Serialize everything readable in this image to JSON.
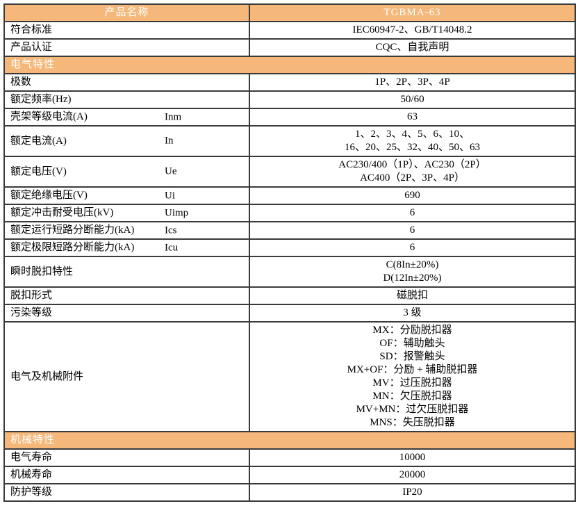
{
  "colors": {
    "accent_orange": "#f5b87a",
    "border": "#3a3a3a",
    "header_text": "#ffffff",
    "body_text": "#000000"
  },
  "table": {
    "rows": [
      {
        "type": "header",
        "label": "产品名称",
        "values": [
          "TGBMA-63"
        ]
      },
      {
        "type": "data",
        "label": "符合标准",
        "values": [
          "IEC60947-2、GB/T14048.2"
        ]
      },
      {
        "type": "data",
        "label": "产品认证",
        "values": [
          "CQC、自我声明"
        ]
      },
      {
        "type": "section",
        "label": "电气特性"
      },
      {
        "type": "data",
        "label": "极数",
        "values": [
          "1P、2P、3P、4P"
        ]
      },
      {
        "type": "data",
        "label": "额定频率(Hz)",
        "values": [
          "50/60"
        ]
      },
      {
        "type": "data",
        "label": "壳架等级电流(A)",
        "symbol": "Inm",
        "values": [
          "63"
        ]
      },
      {
        "type": "data",
        "label": "额定电流(A)",
        "symbol": "In",
        "values": [
          "1、2、3、4、5、6、10、",
          "16、20、25、32、40、50、63"
        ]
      },
      {
        "type": "data",
        "label": "额定电压(V)",
        "symbol": "Ue",
        "values": [
          "AC230/400（1P）、AC230（2P）",
          "AC400（2P、3P、4P）"
        ]
      },
      {
        "type": "data",
        "label": "额定绝缘电压(V)",
        "symbol": "Ui",
        "values": [
          "690"
        ]
      },
      {
        "type": "data",
        "label": "额定冲击耐受电压(kV)",
        "symbol": "Uimp",
        "values": [
          "6"
        ]
      },
      {
        "type": "data",
        "label": "额定运行短路分断能力(kA)",
        "symbol": "Ics",
        "values": [
          "6"
        ]
      },
      {
        "type": "data",
        "label": "额定极限短路分断能力(kA)",
        "symbol": "Icu",
        "values": [
          "6"
        ]
      },
      {
        "type": "data",
        "label": "瞬时脱扣特性",
        "values": [
          "C(8In±20%)",
          "D(12In±20%)"
        ]
      },
      {
        "type": "data",
        "label": "脱扣形式",
        "values": [
          "磁脱扣"
        ]
      },
      {
        "type": "data",
        "label": "污染等级",
        "values": [
          "3 级"
        ]
      },
      {
        "type": "data",
        "label": "电气及机械附件",
        "values": [
          "MX：分励脱扣器",
          "OF：辅助触头",
          "SD：报警触头",
          "MX+OF：分励 + 辅助脱扣器",
          "MV：过压脱扣器",
          "MN：欠压脱扣器",
          "MV+MN：过欠压脱扣器",
          "MNS：失压脱扣器"
        ]
      },
      {
        "type": "section",
        "label": "机械特性"
      },
      {
        "type": "data",
        "label": "电气寿命",
        "values": [
          "10000"
        ]
      },
      {
        "type": "data",
        "label": "机械寿命",
        "values": [
          "20000"
        ]
      },
      {
        "type": "data",
        "label": "防护等级",
        "values": [
          "IP20"
        ]
      }
    ]
  }
}
